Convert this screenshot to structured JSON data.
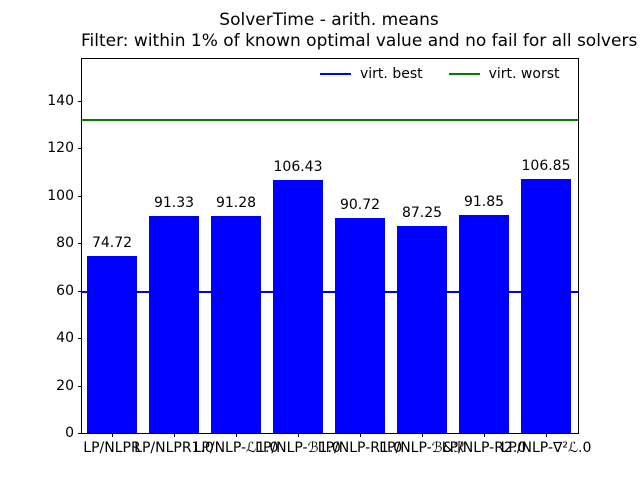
{
  "figure": {
    "title": "SolverTime - arith. means",
    "subtitle": "Filter: within 1% of known optimal value and no fail for all solvers"
  },
  "legend": {
    "entries": [
      {
        "label": "virt. best",
        "color": "#0000ff"
      },
      {
        "label": "virt. worst",
        "color": "#008000"
      }
    ],
    "position": "upper right inside plot, horizontal, no frame"
  },
  "chart_data": {
    "type": "bar",
    "title": "SolverTime - arith. means",
    "subtitle": "Filter: within 1% of known optimal value and no fail for all solvers",
    "categories": [
      "LP/NLPR",
      "LP/NLPR1.0",
      "LP/NLP-ℒ1.0",
      "LP/NLP-ℬ1.0",
      "LP/NLP-R1.0",
      "LP/NLP-ℬ&ℛ",
      "LP/NLP-R2.0",
      "LP/NLP-∇²ℒ.0"
    ],
    "values": [
      74.72,
      91.33,
      91.28,
      106.43,
      90.72,
      87.25,
      91.85,
      106.85
    ],
    "value_labels": [
      "74.72",
      "91.33",
      "91.28",
      "106.43",
      "90.72",
      "87.25",
      "91.85",
      "106.85"
    ],
    "bar_color": "#0000ff",
    "hlines": [
      {
        "name": "virt. best",
        "value": 59.2,
        "color": "#0000ff"
      },
      {
        "name": "virt. worst",
        "value": 131.7,
        "color": "#008000"
      }
    ],
    "xlabel": "",
    "ylabel": "",
    "ylim": [
      0,
      157.5
    ],
    "yticks": [
      0,
      20,
      40,
      60,
      80,
      100,
      120,
      140
    ],
    "grid": false
  }
}
